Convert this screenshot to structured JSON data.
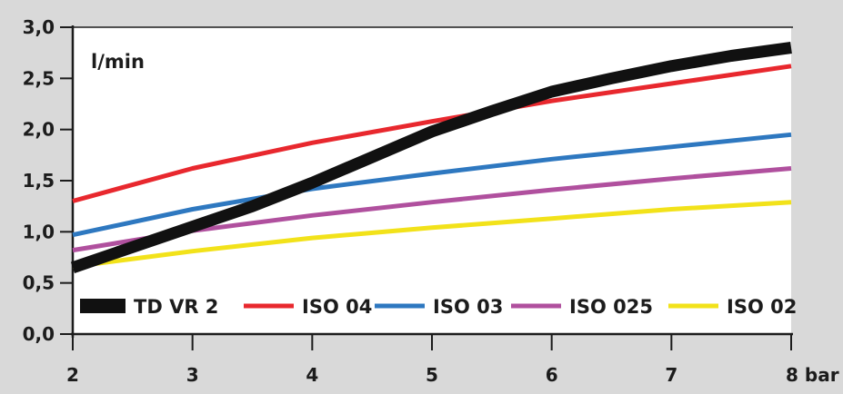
{
  "chart_data": {
    "type": "line",
    "title": "",
    "ylabel": "l/min",
    "xlabel": "",
    "x_tick_labels": [
      "2",
      "3",
      "4",
      "5",
      "6",
      "7",
      "8 bar"
    ],
    "y_tick_labels": [
      "0,0",
      "0,5",
      "1,0",
      "1,5",
      "2,0",
      "2,5",
      "3,0"
    ],
    "xlim": [
      2,
      8
    ],
    "ylim": [
      0,
      3
    ],
    "grid": false,
    "legend_position": "bottom",
    "series": [
      {
        "name": "TD VR 2",
        "color": "#111111",
        "x": [
          2,
          2.5,
          3,
          3.5,
          4,
          4.5,
          5,
          5.5,
          6,
          6.5,
          7,
          7.5,
          8
        ],
        "y": [
          0.65,
          0.85,
          1.05,
          1.25,
          1.48,
          1.73,
          1.98,
          2.18,
          2.37,
          2.5,
          2.62,
          2.72,
          2.8
        ]
      },
      {
        "name": "ISO 04",
        "color": "#e8282e",
        "x": [
          2,
          3,
          4,
          5,
          6,
          7,
          8
        ],
        "y": [
          1.3,
          1.62,
          1.87,
          2.08,
          2.28,
          2.45,
          2.62
        ]
      },
      {
        "name": "ISO 03",
        "color": "#2e78c0",
        "x": [
          2,
          3,
          4,
          5,
          6,
          7,
          8
        ],
        "y": [
          0.97,
          1.22,
          1.42,
          1.57,
          1.71,
          1.83,
          1.95
        ]
      },
      {
        "name": "ISO 025",
        "color": "#b0509e",
        "x": [
          2,
          3,
          4,
          5,
          6,
          7,
          8
        ],
        "y": [
          0.82,
          1.01,
          1.16,
          1.29,
          1.41,
          1.52,
          1.62
        ]
      },
      {
        "name": "ISO 02",
        "color": "#f2e21a",
        "x": [
          2,
          3,
          4,
          5,
          6,
          7,
          8
        ],
        "y": [
          0.66,
          0.81,
          0.94,
          1.04,
          1.13,
          1.22,
          1.29
        ]
      }
    ]
  }
}
